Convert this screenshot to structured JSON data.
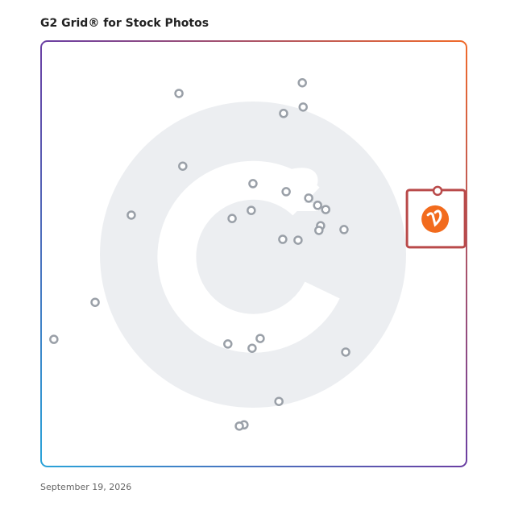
{
  "chart_data": {
    "type": "scatter",
    "title": "G2 Grid® for Stock Photos",
    "date": "September 19, 2026",
    "xlim": [
      0,
      100
    ],
    "ylim": [
      0,
      100
    ],
    "color": "#9aa0a8",
    "highlight_color": "#b94a4a",
    "x": [
      32.4,
      61.4,
      61.6,
      57.0,
      33.3,
      49.8,
      57.6,
      62.9,
      65.0,
      66.9,
      21.2,
      44.9,
      49.4,
      65.7,
      65.3,
      71.2,
      56.8,
      60.4,
      12.7,
      3.0,
      43.9,
      49.6,
      51.5,
      71.6,
      55.9,
      47.7,
      46.6
    ],
    "y": [
      87.7,
      90.2,
      84.5,
      83.0,
      70.6,
      66.5,
      64.6,
      63.1,
      61.4,
      60.4,
      59.1,
      58.3,
      60.2,
      56.6,
      55.5,
      55.7,
      53.4,
      53.2,
      38.6,
      29.9,
      28.8,
      27.8,
      30.1,
      26.9,
      15.3,
      9.8,
      9.5
    ],
    "highlight": {
      "x": 93.2,
      "y": 64.8
    }
  }
}
